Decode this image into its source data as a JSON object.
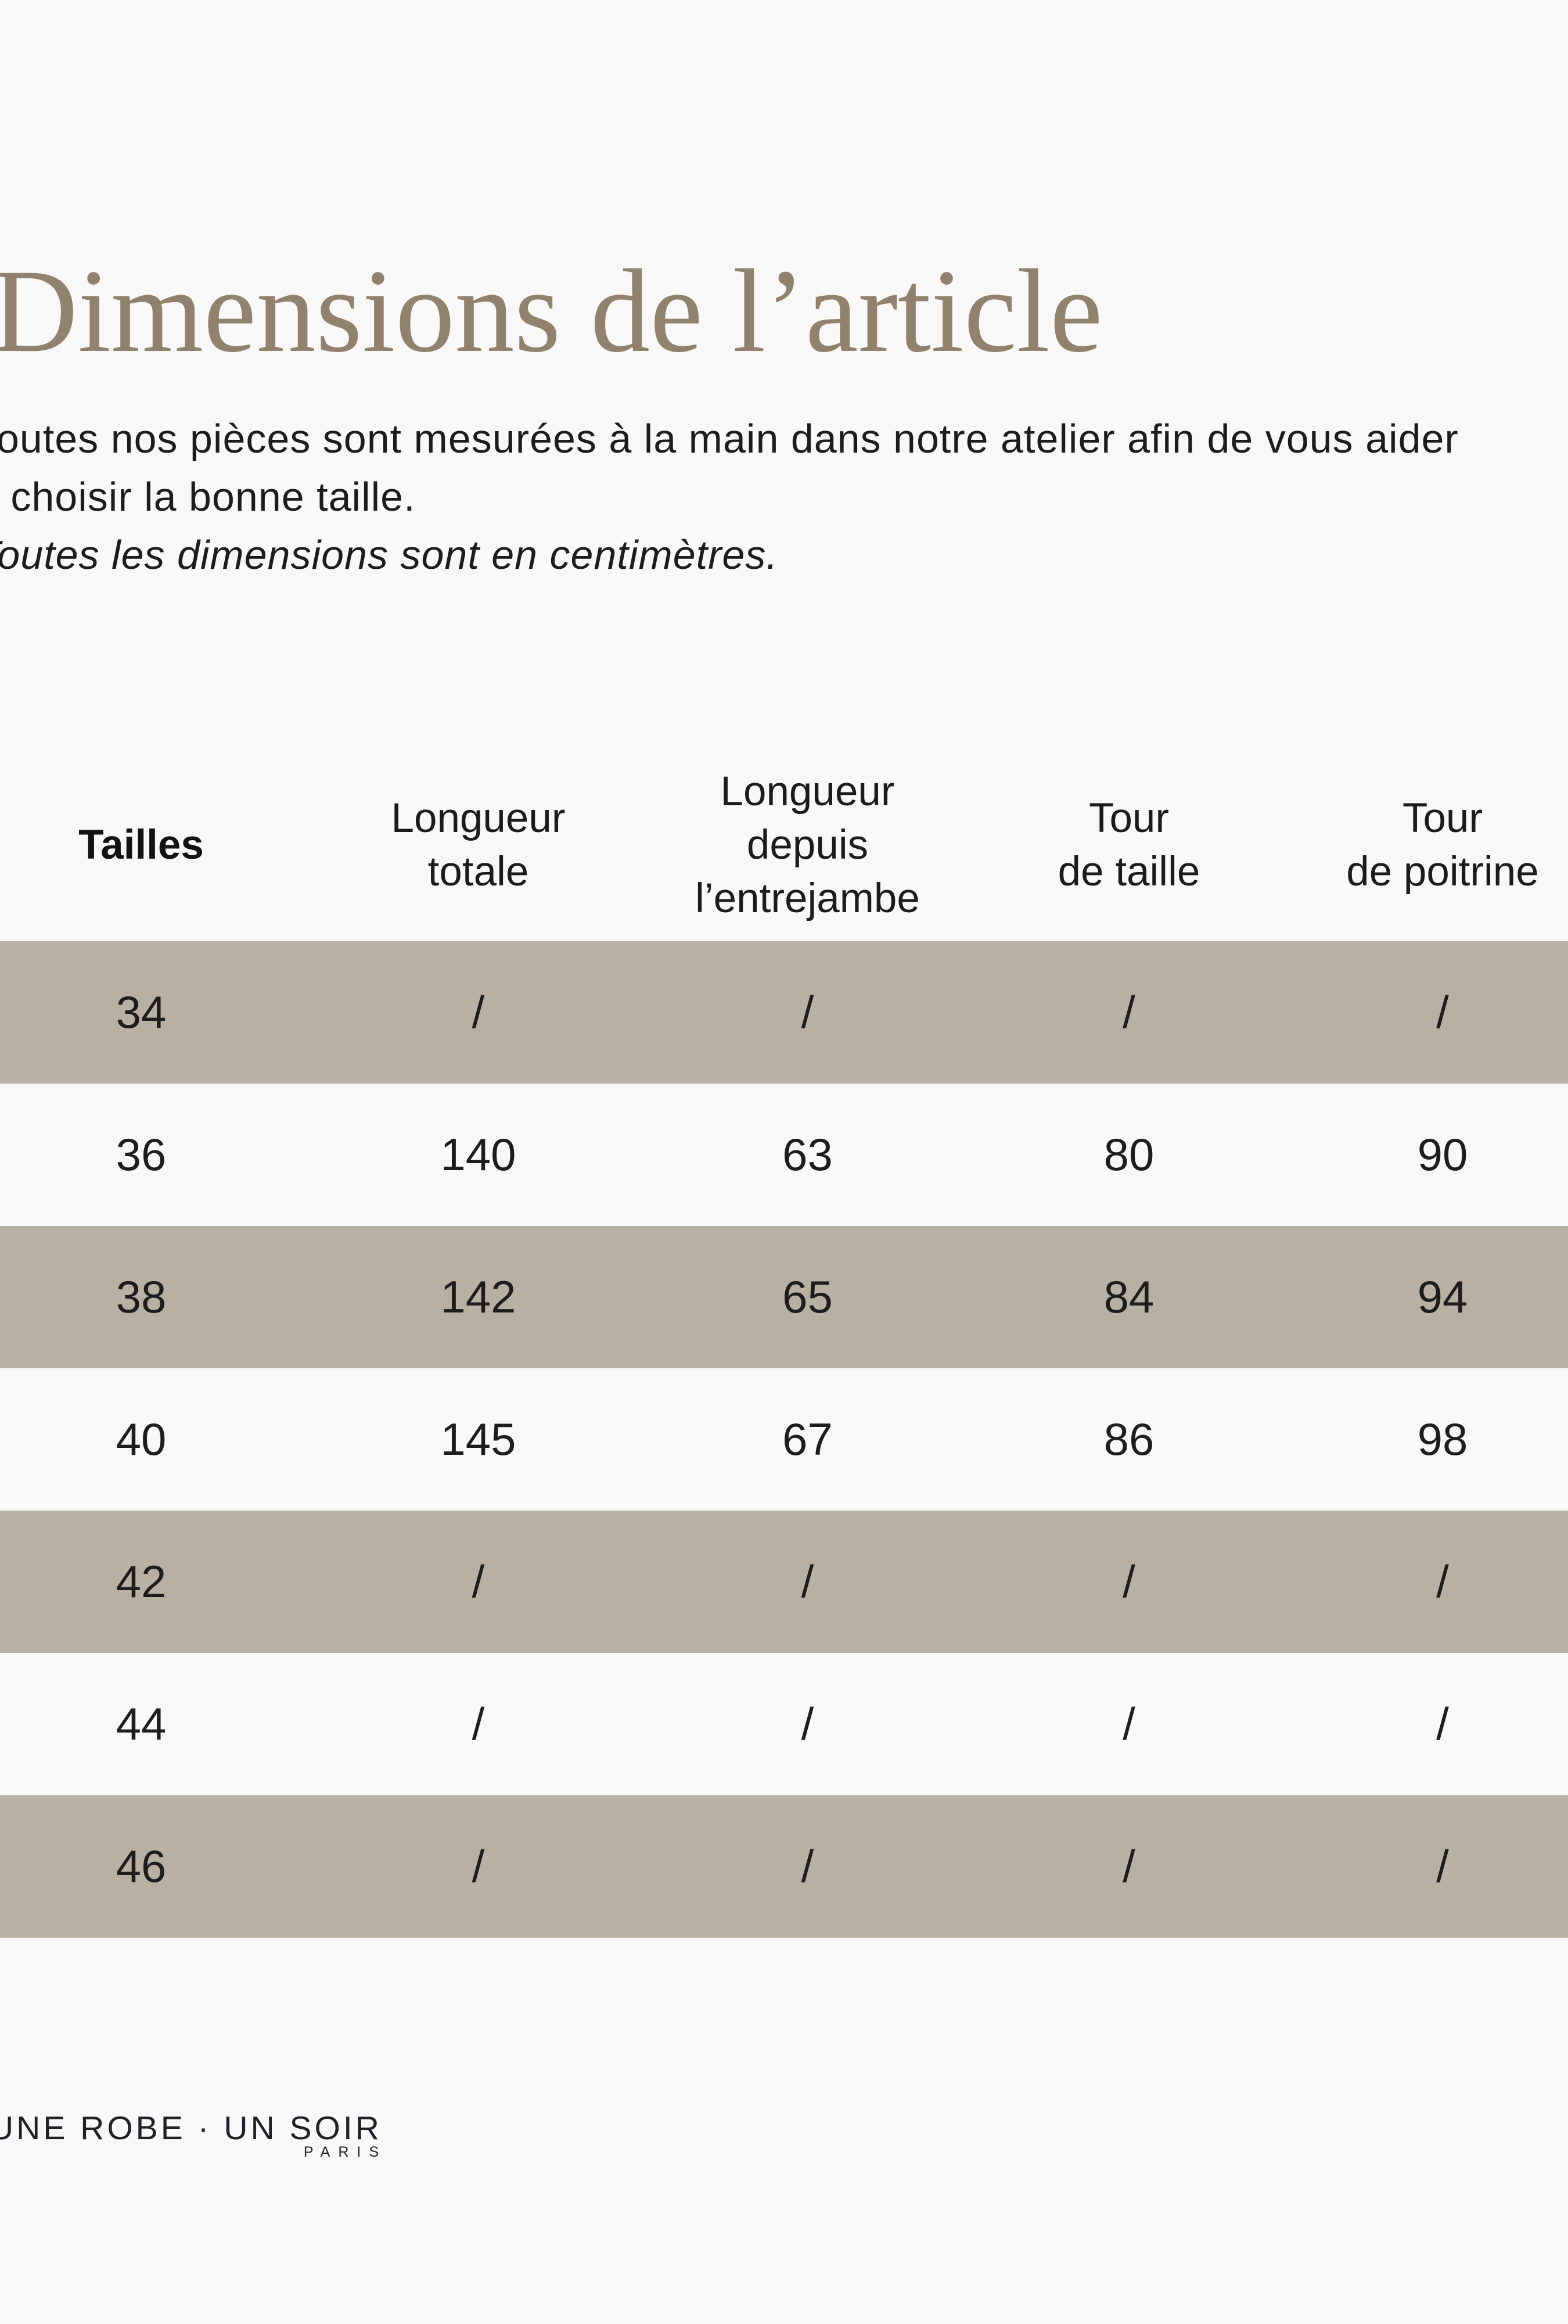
{
  "title": "Dimensions de l’article",
  "intro": {
    "line1": "Toutes nos pièces sont mesurées à la main dans notre atelier afin de vous aider",
    "line2": "à choisir la bonne taille.",
    "note": "Toutes les dimensions sont en centimètres."
  },
  "table": {
    "header": {
      "col1": [
        "Tailles"
      ],
      "col2": [
        "Longueur",
        "totale"
      ],
      "col3": [
        "Longueur",
        "depuis",
        "l’entrejambe"
      ],
      "col4": [
        "Tour",
        "de taille"
      ],
      "col5": [
        "Tour",
        "de poitrine"
      ]
    },
    "rows": [
      {
        "size": "34",
        "values": [
          "/",
          "/",
          "/",
          "/"
        ],
        "shaded": true
      },
      {
        "size": "36",
        "values": [
          "140",
          "63",
          "80",
          "90"
        ],
        "shaded": false
      },
      {
        "size": "38",
        "values": [
          "142",
          "65",
          "84",
          "94"
        ],
        "shaded": true
      },
      {
        "size": "40",
        "values": [
          "145",
          "67",
          "86",
          "98"
        ],
        "shaded": false
      },
      {
        "size": "42",
        "values": [
          "/",
          "/",
          "/",
          "/"
        ],
        "shaded": true
      },
      {
        "size": "44",
        "values": [
          "/",
          "/",
          "/",
          "/"
        ],
        "shaded": false
      },
      {
        "size": "46",
        "values": [
          "/",
          "/",
          "/",
          "/"
        ],
        "shaded": true
      }
    ]
  },
  "footer": {
    "brand": "UNE ROBE · UN SOIR",
    "city": "PARIS"
  },
  "colors": {
    "background": "#f8f8f8",
    "stripe": "#b8b0a2",
    "title": "#90826c",
    "text": "#1c1c1e"
  }
}
